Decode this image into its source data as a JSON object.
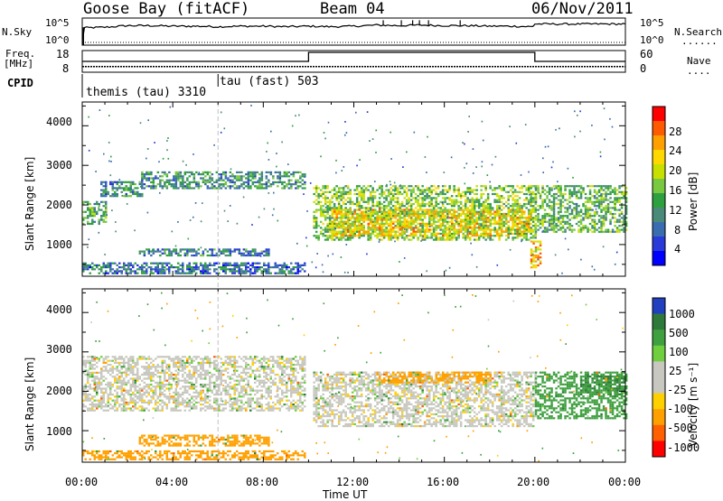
{
  "header": {
    "station": "Goose Bay (fitACF)",
    "beam": "Beam 04",
    "date": "06/Nov/2011"
  },
  "noise_panel": {
    "left_label": "N.Sky",
    "right_label": "N.Search",
    "right_legend": "......",
    "left_ticks": [
      "10^5",
      "10^0"
    ],
    "right_ticks": [
      "10^5",
      "10^0"
    ]
  },
  "freq_panel": {
    "left_label_1": "Freq.",
    "left_label_2": "[MHz]",
    "right_label": "Nave",
    "right_legend": "....",
    "left_ticks": [
      "18",
      "8"
    ],
    "right_ticks": [
      "60",
      "0"
    ]
  },
  "cpid": {
    "label": "CPID",
    "modes": [
      {
        "name": "themis (tau) 3310",
        "start_hour": 0,
        "end_hour": 6
      },
      {
        "name": "tau (fast) 503",
        "start_hour": 6,
        "end_hour": 24
      }
    ]
  },
  "x_axis": {
    "label": "Time UT",
    "ticks": [
      "00:00",
      "04:00",
      "08:00",
      "12:00",
      "16:00",
      "20:00",
      "00:00"
    ]
  },
  "power_panel": {
    "ylabel": "Slant Range [km]",
    "yticks": [
      "4000",
      "3000",
      "2000",
      "1000"
    ],
    "colorbar_label": "Power [dB]",
    "colorbar_ticks": [
      "28",
      "24",
      "20",
      "16",
      "12",
      "8",
      "4"
    ],
    "colorbar_colors": [
      "#ff0000",
      "#ff5a00",
      "#ffa000",
      "#ffd800",
      "#c8e000",
      "#78c840",
      "#2fa040",
      "#4a8a78",
      "#3a6cb0",
      "#2a3ad8",
      "#0000ff"
    ]
  },
  "velocity_panel": {
    "ylabel": "Slant Range [km]",
    "yticks": [
      "4000",
      "3000",
      "2000",
      "1000"
    ],
    "colorbar_label": "Velocity [m s⁻¹]",
    "colorbar_ticks": [
      "1000",
      "500",
      "100",
      "25",
      "-25",
      "-100",
      "-500",
      "-1000"
    ],
    "colorbar_colors": [
      "#2040c0",
      "#2f7a3a",
      "#3fa040",
      "#6fcf3f",
      "#c8c8c0",
      "#c8c8c0",
      "#ffd000",
      "#ffa000",
      "#ff6000",
      "#ff0000"
    ]
  },
  "chart_data": {
    "type": "heatmap",
    "title": "Goose Bay (fitACF)",
    "subtitle": "Beam 04 06/Nov/2011",
    "xlabel": "Time UT",
    "ylabel": "Slant Range [km]",
    "xlim_hours": [
      0,
      24
    ],
    "ylim_km": [
      200,
      4600
    ],
    "noise_series": {
      "name": "N.Sky",
      "scale": "log",
      "points": [
        [
          0,
          1
        ],
        [
          0.1,
          3.2
        ],
        [
          1,
          3.3
        ],
        [
          2,
          3.6
        ],
        [
          3,
          3.6
        ],
        [
          4,
          3.5
        ],
        [
          5,
          3.5
        ],
        [
          6,
          3.4
        ],
        [
          7,
          3.5
        ],
        [
          8,
          3.5
        ],
        [
          9,
          3.4
        ],
        [
          10,
          3.5
        ],
        [
          11,
          3.4
        ],
        [
          12,
          3.5
        ],
        [
          13,
          3.7
        ],
        [
          14,
          3.6
        ],
        [
          15,
          3.7
        ],
        [
          16,
          3.6
        ],
        [
          17,
          3.6
        ],
        [
          18,
          3.5
        ],
        [
          19,
          3.5
        ],
        [
          19.9,
          3.4
        ],
        [
          20,
          3.9
        ],
        [
          21,
          3.9
        ],
        [
          22,
          3.9
        ],
        [
          23,
          3.9
        ],
        [
          24,
          3.9
        ]
      ]
    },
    "frequency_series": {
      "name": "Freq. [MHz]",
      "points": [
        [
          0,
          10.6
        ],
        [
          24,
          10.6
        ]
      ]
    },
    "nave_series": {
      "name": "Nave",
      "points": [
        [
          0,
          30
        ],
        [
          10,
          30
        ],
        [
          10,
          55
        ],
        [
          20,
          55
        ],
        [
          20,
          30
        ],
        [
          24,
          30
        ]
      ]
    },
    "power_regions": [
      {
        "t0": 0.0,
        "t1": 1.0,
        "r0": 1500,
        "r1": 2100,
        "db": 11
      },
      {
        "t0": 0.8,
        "t1": 2.6,
        "r0": 2200,
        "r1": 2600,
        "db": 9
      },
      {
        "t0": 2.6,
        "t1": 9.8,
        "r0": 2400,
        "r1": 2850,
        "db": 10
      },
      {
        "t0": 2.5,
        "t1": 8.2,
        "r0": 700,
        "r1": 900,
        "db": 8
      },
      {
        "t0": 0.0,
        "t1": 9.8,
        "r0": 250,
        "r1": 550,
        "db": 7
      },
      {
        "t0": 10.2,
        "t1": 20.0,
        "r0": 1100,
        "r1": 2500,
        "db": 15
      },
      {
        "t0": 11.0,
        "t1": 19.8,
        "r0": 1200,
        "r1": 1900,
        "db": 20
      },
      {
        "t0": 20.0,
        "t1": 24.0,
        "r0": 1300,
        "r1": 2500,
        "db": 13
      },
      {
        "t0": 19.8,
        "t1": 20.2,
        "r0": 400,
        "r1": 1100,
        "db": 22
      }
    ],
    "velocity_regions": [
      {
        "t0": 0.0,
        "t1": 9.8,
        "r0": 1500,
        "r1": 2900,
        "v": 0
      },
      {
        "t0": 2.5,
        "t1": 8.2,
        "r0": 600,
        "r1": 900,
        "v": -150
      },
      {
        "t0": 0.0,
        "t1": 9.8,
        "r0": 250,
        "r1": 500,
        "v": -200
      },
      {
        "t0": 10.2,
        "t1": 20.0,
        "r0": 1100,
        "r1": 2500,
        "v": 0
      },
      {
        "t0": 13.0,
        "t1": 18.0,
        "r0": 2200,
        "r1": 2500,
        "v": -150
      },
      {
        "t0": 20.0,
        "t1": 24.0,
        "r0": 1300,
        "r1": 2500,
        "v": 100
      },
      {
        "t0": 22.0,
        "t1": 24.0,
        "r0": 1900,
        "r1": 2400,
        "v": 300
      }
    ]
  }
}
